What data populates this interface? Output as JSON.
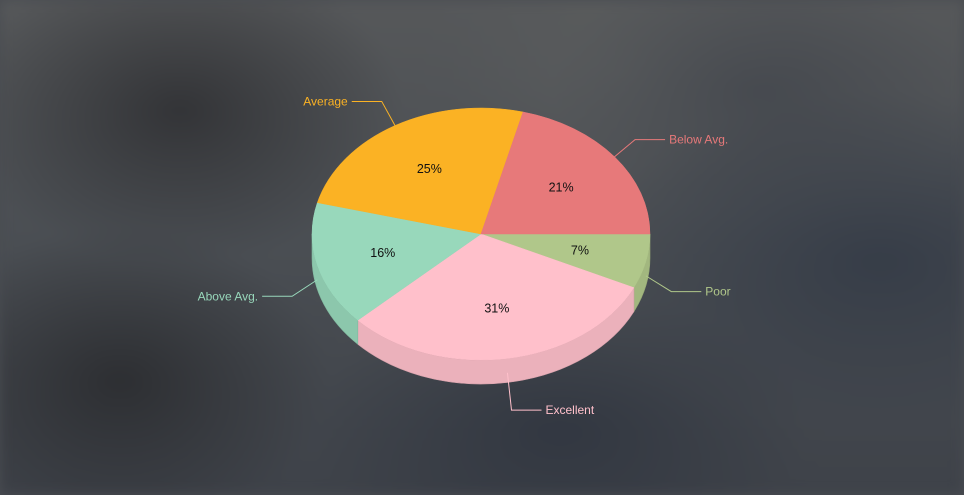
{
  "chart_data": {
    "type": "pie",
    "style": "3d",
    "slices": [
      {
        "label": "Poor",
        "value": 7,
        "display": "7%",
        "color": "#b0c78a"
      },
      {
        "label": "Excellent",
        "value": 31,
        "display": "31%",
        "color": "#ffc0cb"
      },
      {
        "label": "Above Avg.",
        "value": 16,
        "display": "16%",
        "color": "#98d8bb"
      },
      {
        "label": "Average",
        "value": 25,
        "display": "25%",
        "color": "#fbb224"
      },
      {
        "label": "Below Avg.",
        "value": 21,
        "display": "21%",
        "color": "#e7797a"
      }
    ]
  }
}
